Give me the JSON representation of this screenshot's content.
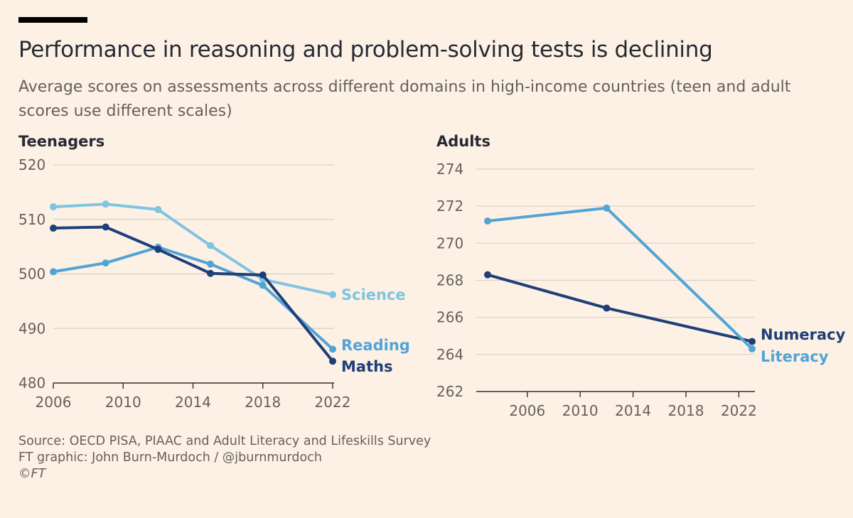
{
  "title": "Performance in reasoning and problem-solving tests is declining",
  "subtitle": "Average scores on assessments across different domains in high-income countries (teen and adult scores use different scales)",
  "source": {
    "line1": "Source: OECD PISA, PIAAC and Adult Literacy and Lifeskills Survey",
    "line2": "FT graphic: John Burn-Murdoch / @jburnmurdoch",
    "line3": "©FT"
  },
  "chart_data": [
    {
      "type": "line",
      "panel": "Teenagers",
      "xlim": [
        2006,
        2022
      ],
      "ylim": [
        480,
        520
      ],
      "xticks": [
        2006,
        2010,
        2014,
        2018,
        2022
      ],
      "yticks": [
        480,
        490,
        500,
        510,
        520
      ],
      "grid": true,
      "series": [
        {
          "name": "Science",
          "color": "#7FC4E0",
          "x": [
            2006,
            2009,
            2012,
            2015,
            2018,
            2022
          ],
          "y": [
            512.3,
            512.8,
            511.8,
            505.2,
            499.0,
            496.2
          ]
        },
        {
          "name": "Reading",
          "color": "#52A4D7",
          "x": [
            2006,
            2009,
            2012,
            2015,
            2018,
            2022
          ],
          "y": [
            500.4,
            502.0,
            504.9,
            501.8,
            497.9,
            486.2
          ]
        },
        {
          "name": "Maths",
          "color": "#1E3F78",
          "x": [
            2006,
            2009,
            2012,
            2015,
            2018,
            2022
          ],
          "y": [
            508.4,
            508.6,
            504.5,
            500.1,
            499.8,
            484.0
          ]
        }
      ]
    },
    {
      "type": "line",
      "panel": "Adults",
      "xlim": [
        2003,
        2023
      ],
      "ylim": [
        262,
        274
      ],
      "xticks": [
        2006,
        2010,
        2014,
        2018,
        2022
      ],
      "yticks": [
        262,
        264,
        266,
        268,
        270,
        272,
        274
      ],
      "grid": true,
      "series": [
        {
          "name": "Numeracy",
          "color": "#1E3F78",
          "x": [
            2003,
            2012,
            2023
          ],
          "y": [
            268.3,
            266.5,
            264.7
          ]
        },
        {
          "name": "Literacy",
          "color": "#52A4D7",
          "x": [
            2003,
            2012,
            2023
          ],
          "y": [
            271.2,
            271.9,
            264.3
          ]
        }
      ]
    }
  ]
}
